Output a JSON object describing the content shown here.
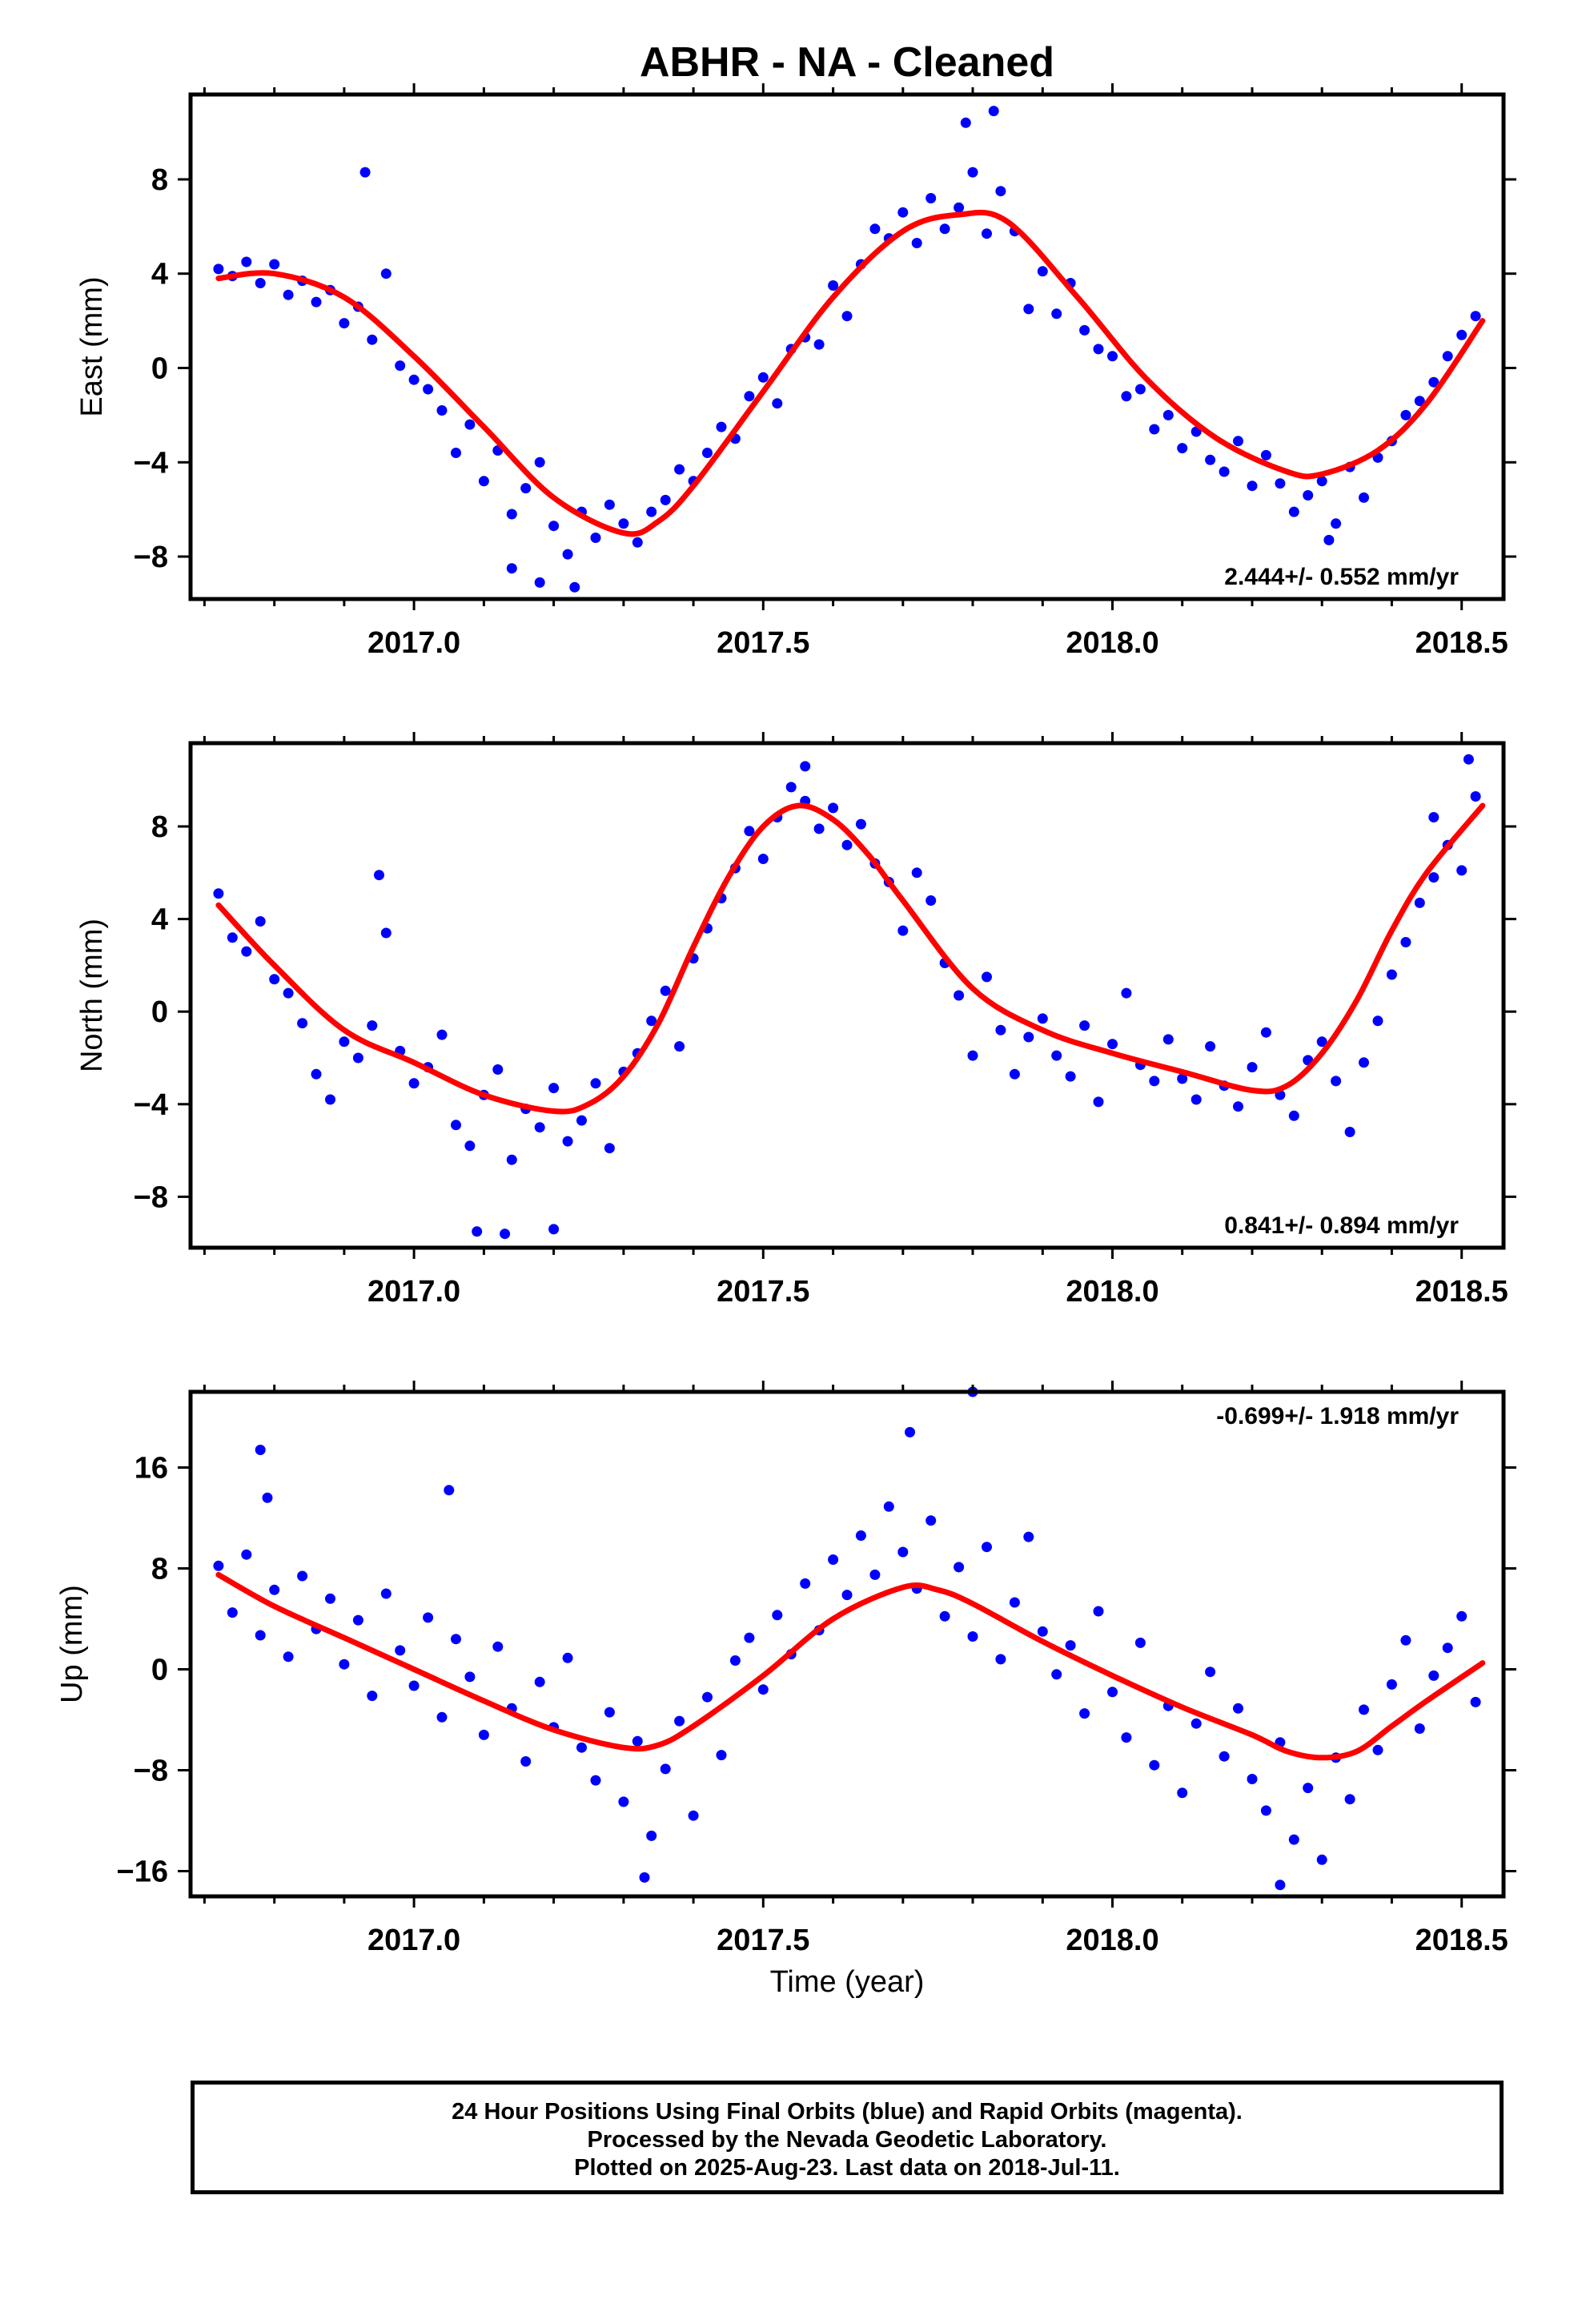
{
  "figure": {
    "title": "ABHR  - NA - Cleaned",
    "xlabel": "Time (year)"
  },
  "footer": {
    "line1": "24 Hour Positions Using Final Orbits (blue) and Rapid Orbits (magenta).",
    "line2": "Processed by the Nevada Geodetic Laboratory.",
    "line3": "Plotted on 2025-Aug-23. Last data on 2018-Jul-11."
  },
  "colors": {
    "points": "#0000ff",
    "trend": "#ff0000",
    "frame": "#000000"
  },
  "chart_data": [
    {
      "type": "scatter",
      "ylabel": "East (mm)",
      "rate_label": "2.444+/- 0.552 mm/yr",
      "rate_position": "bottom-right",
      "xlim": [
        2016.68,
        2018.56
      ],
      "ylim": [
        -9.8,
        11.6
      ],
      "xticks": [
        "2017.0",
        "2017.5",
        "2018.0",
        "2018.5"
      ],
      "yticks": [
        -8,
        -4,
        0,
        4,
        8
      ],
      "trend": {
        "x": [
          2016.72,
          2016.8,
          2016.9,
          2017.0,
          2017.1,
          2017.2,
          2017.3,
          2017.35,
          2017.4,
          2017.5,
          2017.6,
          2017.7,
          2017.78,
          2017.85,
          2017.95,
          2018.05,
          2018.15,
          2018.25,
          2018.3,
          2018.38,
          2018.45,
          2018.53
        ],
        "y": [
          3.8,
          4.0,
          3.0,
          0.5,
          -2.5,
          -5.5,
          -7.0,
          -6.5,
          -5.0,
          -1.0,
          3.0,
          5.8,
          6.5,
          6.2,
          3.0,
          -0.5,
          -3.0,
          -4.4,
          -4.5,
          -3.5,
          -1.5,
          2.0
        ]
      },
      "series": [
        {
          "x": [
            2016.72,
            2016.74,
            2016.76,
            2016.78,
            2016.8,
            2016.82,
            2016.84,
            2016.86,
            2016.88,
            2016.9,
            2016.92,
            2016.94,
            2016.96,
            2016.98,
            2017.0,
            2017.02,
            2017.04,
            2017.06,
            2017.08,
            2017.1,
            2017.12,
            2017.14,
            2017.16,
            2017.18,
            2017.2,
            2017.22,
            2017.24,
            2017.26,
            2017.28,
            2017.3,
            2017.32,
            2017.34,
            2017.36,
            2017.38,
            2017.4,
            2017.42,
            2017.44,
            2017.46,
            2017.48,
            2017.5,
            2017.52,
            2017.54,
            2017.56,
            2017.58,
            2017.6,
            2017.62,
            2017.64,
            2017.66,
            2017.68,
            2017.7,
            2017.72,
            2017.74,
            2017.76,
            2017.78,
            2017.8,
            2017.82,
            2017.84,
            2017.86,
            2017.88,
            2017.9,
            2017.92,
            2017.94,
            2017.96,
            2017.98,
            2018.0,
            2018.02,
            2018.04,
            2018.06,
            2018.08,
            2018.1,
            2018.12,
            2018.14,
            2018.16,
            2018.18,
            2018.2,
            2018.22,
            2018.24,
            2018.26,
            2018.28,
            2018.3,
            2018.32,
            2018.34,
            2018.36,
            2018.38,
            2018.4,
            2018.42,
            2018.44,
            2018.46,
            2018.48,
            2018.5,
            2018.52,
            2016.93,
            2017.14,
            2017.23,
            2017.79,
            2017.83,
            2018.31,
            2017.18
          ],
          "y": [
            4.2,
            3.9,
            4.5,
            3.6,
            4.4,
            3.1,
            3.7,
            2.8,
            3.3,
            1.9,
            2.6,
            1.2,
            4.0,
            0.1,
            -0.5,
            -0.9,
            -1.8,
            -3.6,
            -2.4,
            -4.8,
            -3.5,
            -6.2,
            -5.1,
            -4.0,
            -6.7,
            -7.9,
            -6.1,
            -7.2,
            -5.8,
            -6.6,
            -7.4,
            -6.1,
            -5.6,
            -4.3,
            -4.8,
            -3.6,
            -2.5,
            -3.0,
            -1.2,
            -0.4,
            -1.5,
            0.8,
            1.3,
            1.0,
            3.5,
            2.2,
            4.4,
            5.9,
            5.5,
            6.6,
            5.3,
            7.2,
            5.9,
            6.8,
            8.3,
            5.7,
            7.5,
            5.8,
            2.5,
            4.1,
            2.3,
            3.6,
            1.6,
            0.8,
            0.5,
            -1.2,
            -0.9,
            -2.6,
            -2.0,
            -3.4,
            -2.7,
            -3.9,
            -4.4,
            -3.1,
            -5.0,
            -3.7,
            -4.9,
            -6.1,
            -5.4,
            -4.8,
            -6.6,
            -4.2,
            -5.5,
            -3.8,
            -3.1,
            -2.0,
            -1.4,
            -0.6,
            0.5,
            1.4,
            2.2,
            8.3,
            -8.5,
            -9.3,
            10.4,
            10.9,
            -7.3,
            -9.1
          ]
        }
      ]
    },
    {
      "type": "scatter",
      "ylabel": "North (mm)",
      "rate_label": "0.841+/- 0.894 mm/yr",
      "rate_position": "bottom-right",
      "xlim": [
        2016.68,
        2018.56
      ],
      "ylim": [
        -10.2,
        11.6
      ],
      "xticks": [
        "2017.0",
        "2017.5",
        "2018.0",
        "2018.5"
      ],
      "yticks": [
        -8,
        -4,
        0,
        4,
        8
      ],
      "trend": {
        "x": [
          2016.72,
          2016.8,
          2016.9,
          2017.0,
          2017.1,
          2017.2,
          2017.25,
          2017.3,
          2017.35,
          2017.4,
          2017.45,
          2017.5,
          2017.55,
          2017.6,
          2017.65,
          2017.7,
          2017.8,
          2017.9,
          2018.0,
          2018.1,
          2018.2,
          2018.25,
          2018.3,
          2018.35,
          2018.4,
          2018.45,
          2018.53
        ],
        "y": [
          4.6,
          2.0,
          -0.8,
          -2.2,
          -3.6,
          -4.3,
          -4.0,
          -2.8,
          -0.5,
          2.8,
          5.8,
          8.0,
          8.9,
          8.3,
          6.8,
          4.8,
          1.0,
          -0.8,
          -1.8,
          -2.6,
          -3.4,
          -3.2,
          -1.8,
          0.5,
          3.5,
          6.0,
          8.9
        ]
      },
      "series": [
        {
          "x": [
            2016.72,
            2016.74,
            2016.76,
            2016.78,
            2016.8,
            2016.82,
            2016.84,
            2016.86,
            2016.88,
            2016.9,
            2016.92,
            2016.94,
            2016.96,
            2016.98,
            2017.0,
            2017.02,
            2017.04,
            2017.06,
            2017.08,
            2017.1,
            2017.12,
            2017.14,
            2017.16,
            2017.18,
            2017.2,
            2017.22,
            2017.24,
            2017.26,
            2017.28,
            2017.3,
            2017.32,
            2017.34,
            2017.36,
            2017.38,
            2017.4,
            2017.42,
            2017.44,
            2017.46,
            2017.48,
            2017.5,
            2017.52,
            2017.54,
            2017.56,
            2017.58,
            2017.6,
            2017.62,
            2017.64,
            2017.66,
            2017.68,
            2017.7,
            2017.72,
            2017.74,
            2017.76,
            2017.78,
            2017.8,
            2017.82,
            2017.84,
            2017.86,
            2017.88,
            2017.9,
            2017.92,
            2017.94,
            2017.96,
            2017.98,
            2018.0,
            2018.02,
            2018.04,
            2018.06,
            2018.08,
            2018.1,
            2018.12,
            2018.14,
            2018.16,
            2018.18,
            2018.2,
            2018.22,
            2018.24,
            2018.26,
            2018.28,
            2018.3,
            2018.32,
            2018.34,
            2018.36,
            2018.38,
            2018.4,
            2018.42,
            2018.44,
            2018.46,
            2018.48,
            2018.5,
            2018.52,
            2016.95,
            2017.09,
            2017.13,
            2017.2,
            2017.56,
            2018.46,
            2018.51
          ],
          "y": [
            5.1,
            3.2,
            2.6,
            3.9,
            1.4,
            0.8,
            -0.5,
            -2.7,
            -3.8,
            -1.3,
            -2.0,
            -0.6,
            3.4,
            -1.7,
            -3.1,
            -2.4,
            -1.0,
            -4.9,
            -5.8,
            -3.6,
            -2.5,
            -6.4,
            -4.2,
            -5.0,
            -3.3,
            -5.6,
            -4.7,
            -3.1,
            -5.9,
            -2.6,
            -1.8,
            -0.4,
            0.9,
            -1.5,
            2.3,
            3.6,
            4.9,
            6.2,
            7.8,
            6.6,
            8.4,
            9.7,
            9.1,
            7.9,
            8.8,
            7.2,
            8.1,
            6.4,
            5.6,
            3.5,
            6.0,
            4.8,
            2.1,
            0.7,
            -1.9,
            1.5,
            -0.8,
            -2.7,
            -1.1,
            -0.3,
            -1.9,
            -2.8,
            -0.6,
            -3.9,
            -1.4,
            0.8,
            -2.3,
            -3.0,
            -1.2,
            -2.9,
            -3.8,
            -1.5,
            -3.2,
            -4.1,
            -2.4,
            -0.9,
            -3.6,
            -4.5,
            -2.1,
            -1.3,
            -3.0,
            -5.2,
            -2.2,
            -0.4,
            1.6,
            3.0,
            4.7,
            5.8,
            7.2,
            6.1,
            9.3,
            5.9,
            -9.5,
            -9.6,
            -9.4,
            10.6,
            8.4,
            10.9
          ]
        }
      ]
    },
    {
      "type": "scatter",
      "ylabel": "Up (mm)",
      "rate_label": "-0.699+/- 1.918 mm/yr",
      "rate_position": "top-right",
      "xlim": [
        2016.68,
        2018.56
      ],
      "ylim": [
        -18,
        22
      ],
      "xticks": [
        "2017.0",
        "2017.5",
        "2018.0",
        "2018.5"
      ],
      "yticks": [
        -16,
        -8,
        0,
        8,
        16
      ],
      "trend": {
        "x": [
          2016.72,
          2016.8,
          2016.9,
          2017.0,
          2017.1,
          2017.2,
          2017.3,
          2017.35,
          2017.4,
          2017.5,
          2017.6,
          2017.7,
          2017.75,
          2017.8,
          2017.9,
          2018.0,
          2018.1,
          2018.2,
          2018.25,
          2018.3,
          2018.35,
          2018.4,
          2018.45,
          2018.53
        ],
        "y": [
          7.5,
          5.0,
          2.5,
          0.0,
          -2.5,
          -4.8,
          -6.2,
          -6.0,
          -4.5,
          -0.5,
          4.0,
          6.5,
          6.3,
          5.2,
          2.2,
          -0.5,
          -3.0,
          -5.2,
          -6.5,
          -7.0,
          -6.5,
          -4.5,
          -2.5,
          0.5
        ]
      },
      "series": [
        {
          "x": [
            2016.72,
            2016.74,
            2016.76,
            2016.78,
            2016.8,
            2016.82,
            2016.84,
            2016.86,
            2016.88,
            2016.9,
            2016.92,
            2016.94,
            2016.96,
            2016.98,
            2017.0,
            2017.02,
            2017.04,
            2017.06,
            2017.08,
            2017.1,
            2017.12,
            2017.14,
            2017.16,
            2017.18,
            2017.2,
            2017.22,
            2017.24,
            2017.26,
            2017.28,
            2017.3,
            2017.32,
            2017.34,
            2017.36,
            2017.38,
            2017.4,
            2017.42,
            2017.44,
            2017.46,
            2017.48,
            2017.5,
            2017.52,
            2017.54,
            2017.56,
            2017.58,
            2017.6,
            2017.62,
            2017.64,
            2017.66,
            2017.68,
            2017.7,
            2017.72,
            2017.74,
            2017.76,
            2017.78,
            2017.8,
            2017.82,
            2017.84,
            2017.86,
            2017.88,
            2017.9,
            2017.92,
            2017.94,
            2017.96,
            2017.98,
            2018.0,
            2018.02,
            2018.04,
            2018.06,
            2018.08,
            2018.1,
            2018.12,
            2018.14,
            2018.16,
            2018.18,
            2018.2,
            2018.22,
            2018.24,
            2018.26,
            2018.28,
            2018.3,
            2018.32,
            2018.34,
            2018.36,
            2018.38,
            2018.4,
            2018.42,
            2018.44,
            2018.46,
            2018.48,
            2018.5,
            2018.52,
            2016.78,
            2016.79,
            2017.05,
            2017.71,
            2017.8,
            2017.33,
            2018.24
          ],
          "y": [
            8.2,
            4.5,
            9.1,
            2.7,
            6.3,
            1.0,
            7.4,
            3.2,
            5.6,
            0.4,
            3.9,
            -2.1,
            6.0,
            1.5,
            -1.3,
            4.1,
            -3.8,
            2.4,
            -0.6,
            -5.2,
            1.8,
            -3.1,
            -7.3,
            -1.0,
            -4.6,
            0.9,
            -6.2,
            -8.8,
            -3.4,
            -10.5,
            -5.7,
            -13.2,
            -7.9,
            -4.1,
            -11.6,
            -2.2,
            -6.8,
            0.7,
            2.5,
            -1.6,
            4.3,
            1.2,
            6.8,
            3.1,
            8.7,
            5.9,
            10.6,
            7.5,
            12.9,
            9.3,
            6.4,
            11.8,
            4.2,
            8.1,
            2.6,
            9.7,
            0.8,
            5.3,
            10.5,
            3.0,
            -0.4,
            1.9,
            -3.5,
            4.6,
            -1.8,
            -5.4,
            2.1,
            -7.6,
            -2.9,
            -9.8,
            -4.3,
            -0.2,
            -6.9,
            -3.1,
            -8.7,
            -11.2,
            -5.8,
            -13.5,
            -9.4,
            -15.1,
            -7.0,
            -10.3,
            -3.2,
            -6.4,
            -1.2,
            2.3,
            -4.7,
            -0.5,
            1.7,
            4.2,
            -2.6,
            17.4,
            13.6,
            14.2,
            18.8,
            22.0,
            -16.5,
            -17.1
          ]
        }
      ]
    }
  ]
}
